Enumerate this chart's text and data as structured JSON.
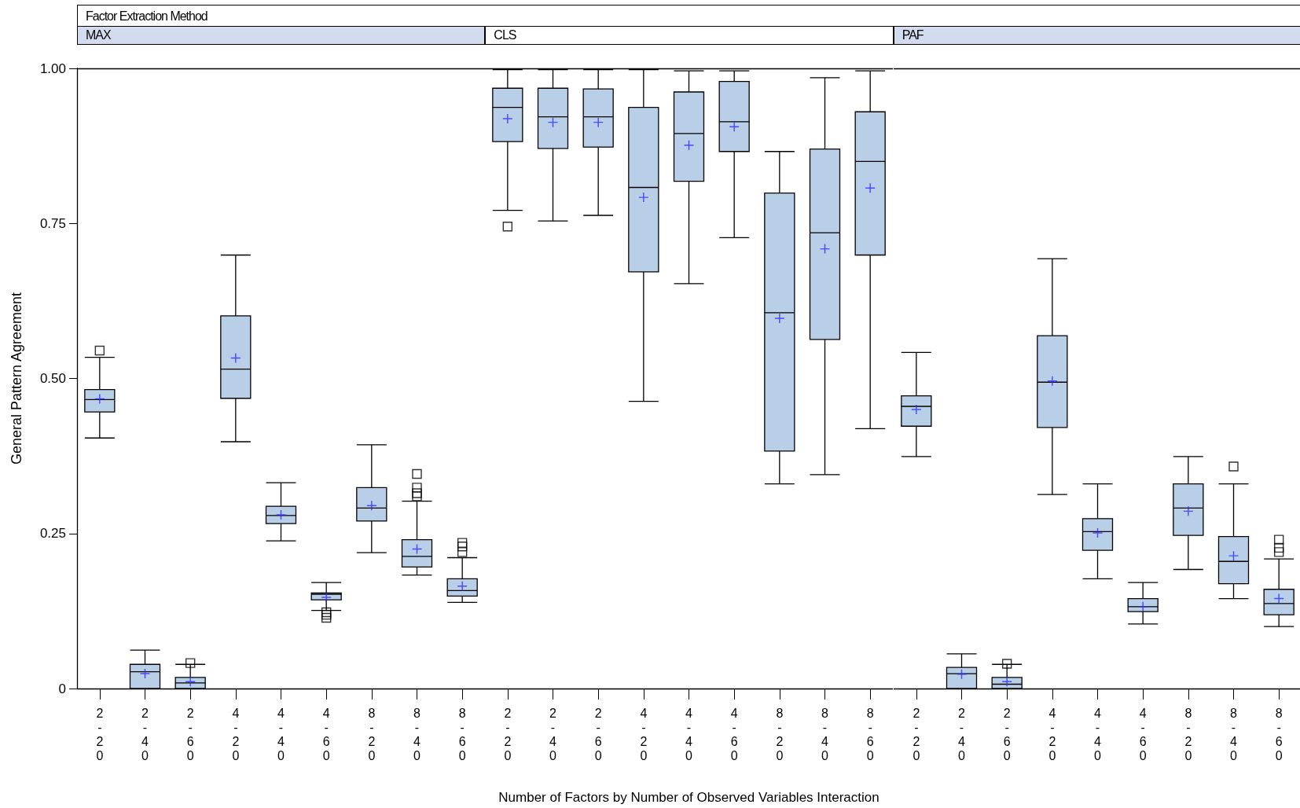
{
  "chart_data": [
    {
      "type": "box",
      "title": "MAX",
      "annotations": [
        "Factor Extraction Method"
      ],
      "ylabel": "General Pattern Agreement",
      "color": "#b9cfe7",
      "categories": [
        "2-20",
        "2-40",
        "2-60",
        "4-20",
        "4-40",
        "4-60",
        "8-20",
        "8-40",
        "8-60"
      ],
      "ylim": [
        0,
        1
      ],
      "yticks": [
        0,
        0.25,
        {
          "value": 0.5,
          "label": "0.50"
        },
        {
          "value": 0.75,
          "label": "0.75"
        },
        {
          "value": 1,
          "label": "1.00"
        }
      ],
      "boxes": [
        {
          "low": 0.404,
          "q1": 0.446,
          "median": 0.466,
          "q3": 0.482,
          "high": 0.534,
          "mean": 0.467,
          "outliers": [
            0.545
          ]
        },
        {
          "low": 0,
          "q1": 0,
          "median": 0.027,
          "q3": 0.039,
          "high": 0.062,
          "mean": 0.024
        },
        {
          "low": 0,
          "q1": 0,
          "median": 0.009,
          "q3": 0.018,
          "high": 0.039,
          "mean": 0.011,
          "outliers": [
            0.041
          ]
        },
        {
          "low": 0.398,
          "q1": 0.468,
          "median": 0.515,
          "q3": 0.601,
          "high": 0.699,
          "mean": 0.533
        },
        {
          "low": 0.238,
          "q1": 0.266,
          "median": 0.279,
          "q3": 0.294,
          "high": 0.332,
          "mean": 0.28
        },
        {
          "low": 0.126,
          "q1": 0.143,
          "median": 0.152,
          "q3": 0.154,
          "high": 0.171,
          "mean": 0.147,
          "outliers": [
            0.123,
            0.119,
            0.114
          ]
        },
        {
          "low": 0.219,
          "q1": 0.27,
          "median": 0.291,
          "q3": 0.324,
          "high": 0.393,
          "mean": 0.295
        },
        {
          "low": 0.183,
          "q1": 0.196,
          "median": 0.213,
          "q3": 0.24,
          "high": 0.302,
          "mean": 0.225,
          "outliers": [
            0.346,
            0.324,
            0.315,
            0.31
          ]
        },
        {
          "low": 0.139,
          "q1": 0.149,
          "median": 0.158,
          "q3": 0.177,
          "high": 0.211,
          "mean": 0.165,
          "outliers": [
            0.235,
            0.229,
            0.22
          ]
        }
      ]
    },
    {
      "type": "box",
      "title": "CLS",
      "xlabel": "Number of Factors by Number of Observed Variables Interaction",
      "color": "#b9cfe7",
      "tick_labels": "x",
      "categories": [
        "2-20",
        "2-40",
        "2-60",
        "4-20",
        "4-40",
        "4-60",
        "8-20",
        "8-40",
        "8-60"
      ],
      "ylim": [
        0,
        1
      ],
      "boxes": [
        {
          "low": 0.771,
          "q1": 0.882,
          "median": 0.937,
          "q3": 0.968,
          "high": 0.998,
          "mean": 0.919,
          "outliers": [
            0.745
          ]
        },
        {
          "low": 0.754,
          "q1": 0.871,
          "median": 0.922,
          "q3": 0.968,
          "high": 0.998,
          "mean": 0.913
        },
        {
          "low": 0.763,
          "q1": 0.873,
          "median": 0.922,
          "q3": 0.967,
          "high": 0.998,
          "mean": 0.913
        },
        {
          "low": 0.463,
          "q1": 0.672,
          "median": 0.808,
          "q3": 0.937,
          "high": 0.998,
          "mean": 0.792
        },
        {
          "low": 0.653,
          "q1": 0.818,
          "median": 0.895,
          "q3": 0.962,
          "high": 0.996,
          "mean": 0.876
        },
        {
          "low": 0.727,
          "q1": 0.866,
          "median": 0.914,
          "q3": 0.979,
          "high": 0.996,
          "mean": 0.906
        },
        {
          "low": 0.33,
          "q1": 0.383,
          "median": 0.606,
          "q3": 0.799,
          "high": 0.866,
          "mean": 0.597
        },
        {
          "low": 0.345,
          "q1": 0.563,
          "median": 0.735,
          "q3": 0.87,
          "high": 0.985,
          "mean": 0.709
        },
        {
          "low": 0.419,
          "q1": 0.699,
          "median": 0.85,
          "q3": 0.93,
          "high": 0.996,
          "mean": 0.807
        }
      ]
    },
    {
      "type": "box",
      "title": "PAF",
      "color": "#b9cfe7",
      "tick_labels": "x",
      "categories": [
        "2-20",
        "2-40",
        "2-60",
        "4-20",
        "4-40",
        "4-60",
        "8-20",
        "8-40",
        "8-60"
      ],
      "ylim": [
        0,
        1
      ],
      "boxes": [
        {
          "low": 0.374,
          "q1": 0.423,
          "median": 0.455,
          "q3": 0.472,
          "high": 0.542,
          "mean": 0.45
        },
        {
          "low": 0,
          "q1": 0,
          "median": 0.024,
          "q3": 0.034,
          "high": 0.056,
          "mean": 0.023
        },
        {
          "low": 0,
          "q1": 0,
          "median": 0.007,
          "q3": 0.018,
          "high": 0.039,
          "mean": 0.011,
          "outliers": [
            0.04
          ]
        },
        {
          "low": 0.313,
          "q1": 0.421,
          "median": 0.494,
          "q3": 0.569,
          "high": 0.693,
          "mean": 0.496
        },
        {
          "low": 0.177,
          "q1": 0.223,
          "median": 0.253,
          "q3": 0.274,
          "high": 0.33,
          "mean": 0.251
        },
        {
          "low": 0.104,
          "q1": 0.124,
          "median": 0.132,
          "q3": 0.145,
          "high": 0.171,
          "mean": 0.132
        },
        {
          "low": 0.192,
          "q1": 0.247,
          "median": 0.291,
          "q3": 0.33,
          "high": 0.374,
          "mean": 0.286
        },
        {
          "low": 0.145,
          "q1": 0.169,
          "median": 0.205,
          "q3": 0.245,
          "high": 0.33,
          "mean": 0.214,
          "outliers": [
            0.358
          ]
        },
        {
          "low": 0.1,
          "q1": 0.119,
          "median": 0.137,
          "q3": 0.16,
          "high": 0.209,
          "mean": 0.145,
          "outliers": [
            0.24,
            0.227,
            0.22
          ]
        }
      ]
    }
  ]
}
